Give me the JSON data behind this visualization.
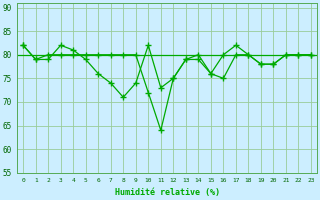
{
  "xlabel": "Humidité relative (%)",
  "background_color": "#cceeff",
  "grid_color": "#99cc99",
  "line_color": "#00aa00",
  "xlim": [
    -0.5,
    23.5
  ],
  "ylim": [
    55,
    91
  ],
  "yticks": [
    55,
    60,
    65,
    70,
    75,
    80,
    85,
    90
  ],
  "xticks": [
    0,
    1,
    2,
    3,
    4,
    5,
    6,
    7,
    8,
    9,
    10,
    11,
    12,
    13,
    14,
    15,
    16,
    17,
    18,
    19,
    20,
    21,
    22,
    23
  ],
  "hline_y": 80,
  "series1_x": [
    0,
    1,
    2,
    3,
    4,
    5,
    6,
    7,
    8,
    9,
    10,
    11,
    12,
    13,
    14,
    15,
    16,
    17,
    18,
    19,
    20,
    21,
    22,
    23
  ],
  "series1_y": [
    82,
    79,
    79,
    82,
    81,
    79,
    76,
    74,
    71,
    74,
    82,
    73,
    75,
    79,
    79,
    76,
    80,
    82,
    80,
    78,
    78,
    80,
    80,
    80
  ],
  "series2_x": [
    0,
    1,
    2,
    3,
    4,
    5,
    6,
    7,
    8,
    9,
    10,
    11,
    12,
    13,
    14,
    15,
    16,
    17,
    18,
    19,
    20,
    21,
    22,
    23
  ],
  "series2_y": [
    82,
    79,
    80,
    80,
    80,
    80,
    80,
    80,
    80,
    80,
    72,
    64,
    75,
    79,
    80,
    76,
    75,
    80,
    80,
    78,
    78,
    80,
    80,
    80
  ]
}
